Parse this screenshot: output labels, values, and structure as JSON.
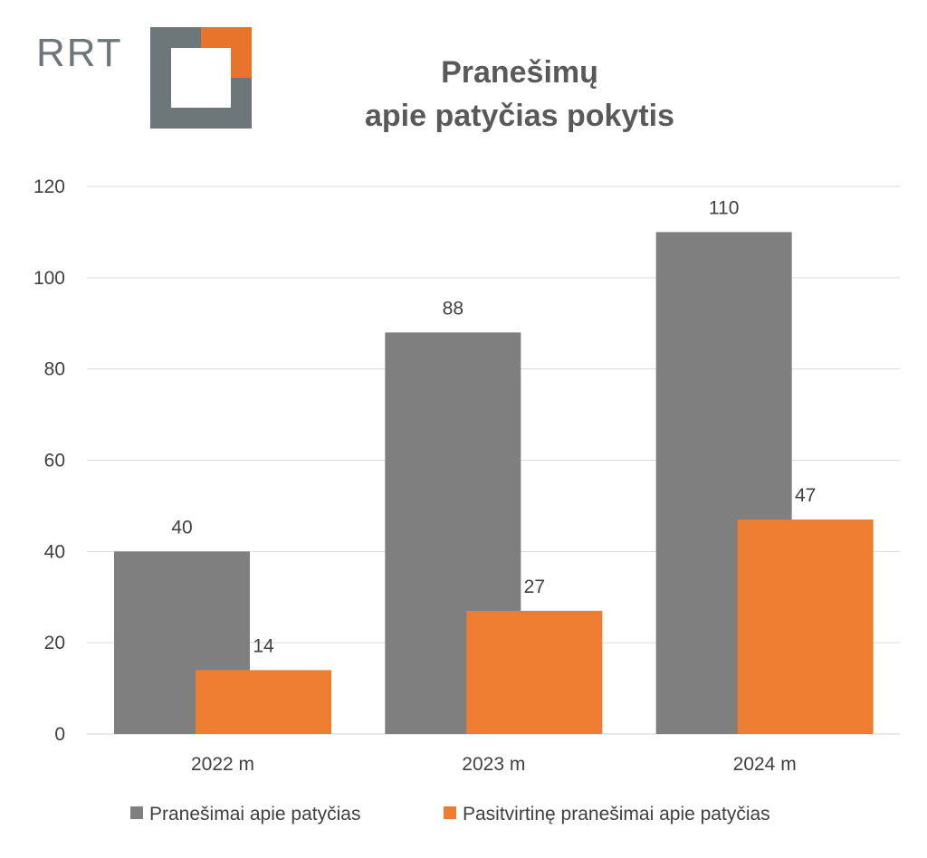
{
  "logo": {
    "text": "RRT",
    "gray": "#6d7678",
    "orange": "#e8742c"
  },
  "chart_data": {
    "type": "bar",
    "title_lines": [
      "Pranešimų",
      "apie patyčias pokytis"
    ],
    "categories": [
      "2022 m",
      "2023 m",
      "2024 m"
    ],
    "series": [
      {
        "name": "Pranešimai apie patyčias",
        "values": [
          40,
          88,
          110
        ],
        "color": "#7f7f7f"
      },
      {
        "name": "Pasitvirtinę pranešimai apie patyčias",
        "values": [
          14,
          27,
          47
        ],
        "color": "#ed7d31"
      }
    ],
    "ylim": [
      0,
      120
    ],
    "yticks": [
      0,
      20,
      40,
      60,
      80,
      100,
      120
    ],
    "grid": true,
    "legend_position": "bottom",
    "data_labels": true
  }
}
